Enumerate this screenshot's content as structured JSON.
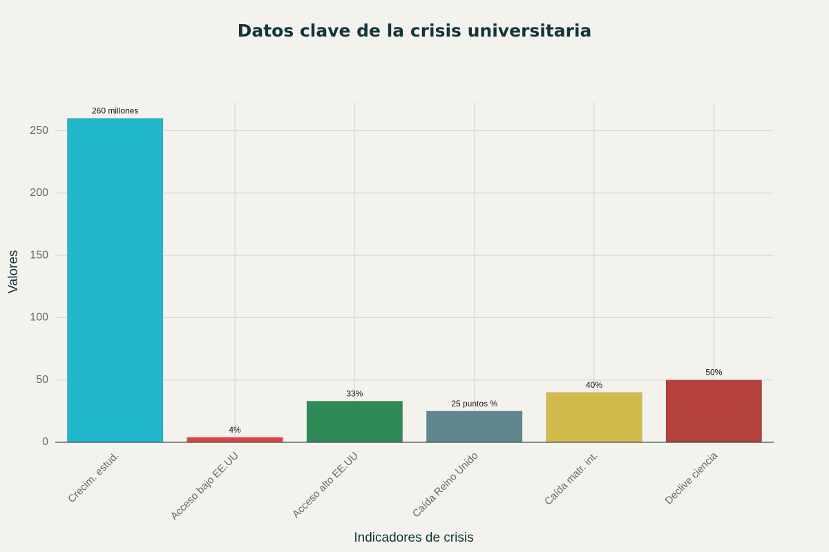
{
  "chart_data": {
    "type": "bar",
    "title": "Datos clave de la crisis universitaria",
    "xlabel": "Indicadores de crisis",
    "ylabel": "Valores",
    "ylim": [
      0,
      273
    ],
    "yticks": [
      0,
      50,
      100,
      150,
      200,
      250
    ],
    "grid": true,
    "categories": [
      "Crecim. estud.",
      "Acceso bajo EE.UU",
      "Acceso alto EE.UU",
      "Caída Reino Unido",
      "Caída matr. int.",
      "Declive ciencia"
    ],
    "values": [
      260,
      4,
      33,
      25,
      40,
      50
    ],
    "data_labels": [
      "260 millones",
      "4%",
      "33%",
      "25 puntos %",
      "40%",
      "50%"
    ],
    "colors": [
      "#21b8cd",
      "#db4545",
      "#2e8b57",
      "#5e878f",
      "#d2ba4c",
      "#b4413c"
    ]
  }
}
